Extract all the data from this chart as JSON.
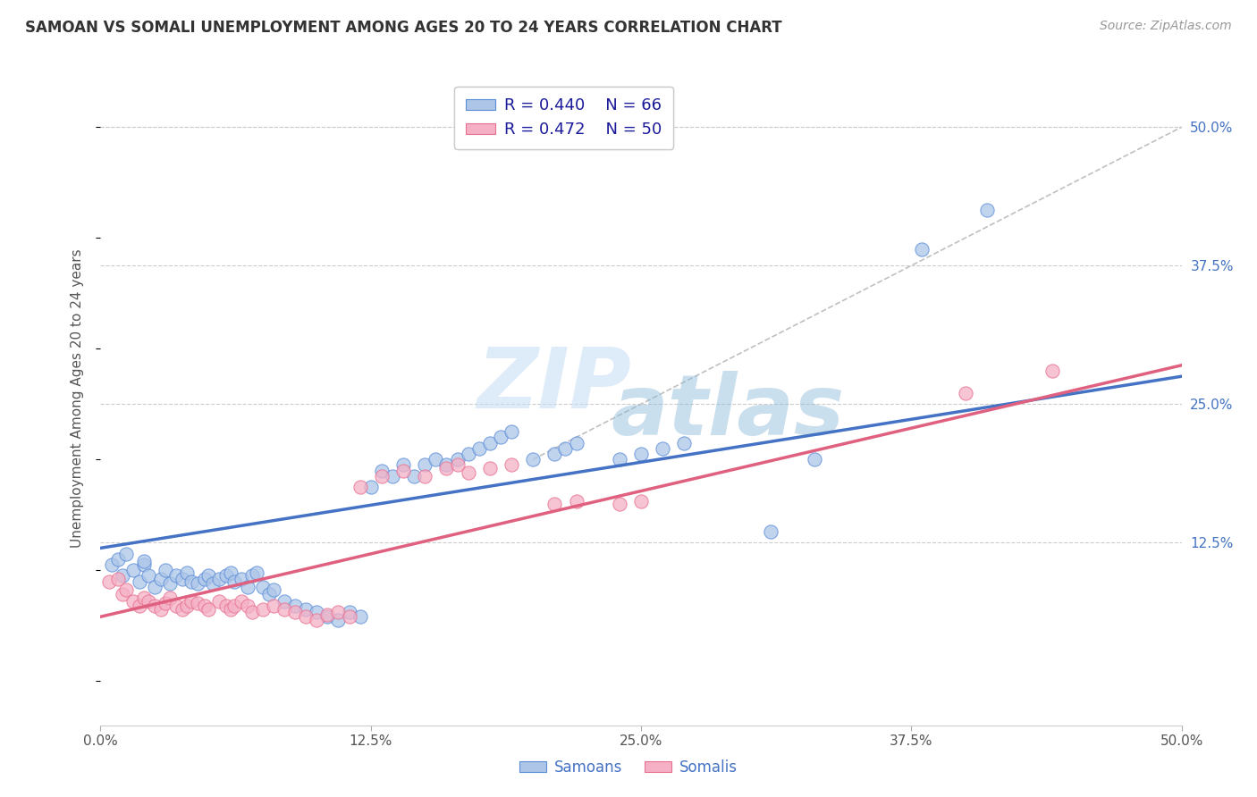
{
  "title": "SAMOAN VS SOMALI UNEMPLOYMENT AMONG AGES 20 TO 24 YEARS CORRELATION CHART",
  "source": "Source: ZipAtlas.com",
  "ylabel": "Unemployment Among Ages 20 to 24 years",
  "xlim": [
    0.0,
    0.5
  ],
  "ylim": [
    -0.04,
    0.55
  ],
  "xtick_labels": [
    "0.0%",
    "12.5%",
    "25.0%",
    "37.5%",
    "50.0%"
  ],
  "xtick_vals": [
    0.0,
    0.125,
    0.25,
    0.375,
    0.5
  ],
  "ytick_labels_right": [
    "50.0%",
    "37.5%",
    "25.0%",
    "12.5%"
  ],
  "ytick_vals_right": [
    0.5,
    0.375,
    0.25,
    0.125
  ],
  "samoan_color": "#adc6e8",
  "somali_color": "#f5b0c5",
  "samoan_edge_color": "#5b8dd9",
  "somali_edge_color": "#e87090",
  "samoan_line_color": "#4472c4",
  "somali_line_color": "#e06080",
  "diagonal_color": "#c0c0c0",
  "legend_r_samoan": "R = 0.440",
  "legend_n_samoan": "N = 66",
  "legend_r_somali": "R = 0.472",
  "legend_n_somali": "N = 50",
  "watermark_zip": "ZIP",
  "watermark_atlas": "atlas",
  "background_color": "#ffffff",
  "grid_color": "#cccccc",
  "samoan_scatter_x": [
    0.005,
    0.008,
    0.01,
    0.012,
    0.015,
    0.018,
    0.02,
    0.02,
    0.022,
    0.025,
    0.028,
    0.03,
    0.032,
    0.035,
    0.038,
    0.04,
    0.042,
    0.045,
    0.048,
    0.05,
    0.052,
    0.055,
    0.058,
    0.06,
    0.062,
    0.065,
    0.068,
    0.07,
    0.072,
    0.075,
    0.078,
    0.08,
    0.085,
    0.09,
    0.095,
    0.1,
    0.105,
    0.11,
    0.115,
    0.12,
    0.125,
    0.13,
    0.135,
    0.14,
    0.145,
    0.15,
    0.155,
    0.16,
    0.165,
    0.17,
    0.175,
    0.18,
    0.185,
    0.19,
    0.2,
    0.21,
    0.215,
    0.22,
    0.24,
    0.25,
    0.26,
    0.27,
    0.31,
    0.33,
    0.38,
    0.41
  ],
  "samoan_scatter_y": [
    0.105,
    0.11,
    0.095,
    0.115,
    0.1,
    0.09,
    0.105,
    0.108,
    0.095,
    0.085,
    0.092,
    0.1,
    0.088,
    0.095,
    0.092,
    0.098,
    0.09,
    0.088,
    0.092,
    0.095,
    0.088,
    0.092,
    0.095,
    0.098,
    0.09,
    0.092,
    0.085,
    0.095,
    0.098,
    0.085,
    0.078,
    0.082,
    0.072,
    0.068,
    0.065,
    0.062,
    0.058,
    0.055,
    0.062,
    0.058,
    0.175,
    0.19,
    0.185,
    0.195,
    0.185,
    0.195,
    0.2,
    0.195,
    0.2,
    0.205,
    0.21,
    0.215,
    0.22,
    0.225,
    0.2,
    0.205,
    0.21,
    0.215,
    0.2,
    0.205,
    0.21,
    0.215,
    0.135,
    0.2,
    0.39,
    0.425
  ],
  "somali_scatter_x": [
    0.004,
    0.008,
    0.01,
    0.012,
    0.015,
    0.018,
    0.02,
    0.022,
    0.025,
    0.028,
    0.03,
    0.032,
    0.035,
    0.038,
    0.04,
    0.042,
    0.045,
    0.048,
    0.05,
    0.055,
    0.058,
    0.06,
    0.062,
    0.065,
    0.068,
    0.07,
    0.075,
    0.08,
    0.085,
    0.09,
    0.095,
    0.1,
    0.105,
    0.11,
    0.115,
    0.12,
    0.13,
    0.14,
    0.15,
    0.16,
    0.165,
    0.17,
    0.18,
    0.19,
    0.21,
    0.22,
    0.24,
    0.25,
    0.4,
    0.44
  ],
  "somali_scatter_y": [
    0.09,
    0.092,
    0.078,
    0.082,
    0.072,
    0.068,
    0.075,
    0.072,
    0.068,
    0.065,
    0.07,
    0.075,
    0.068,
    0.065,
    0.068,
    0.072,
    0.07,
    0.068,
    0.065,
    0.072,
    0.068,
    0.065,
    0.068,
    0.072,
    0.068,
    0.062,
    0.065,
    0.068,
    0.065,
    0.062,
    0.058,
    0.055,
    0.06,
    0.062,
    0.058,
    0.175,
    0.185,
    0.19,
    0.185,
    0.192,
    0.195,
    0.188,
    0.192,
    0.195,
    0.16,
    0.162,
    0.16,
    0.162,
    0.26,
    0.28
  ],
  "samoan_line_x": [
    0.0,
    0.5
  ],
  "samoan_line_y": [
    0.12,
    0.275
  ],
  "somali_line_x": [
    0.0,
    0.5
  ],
  "somali_line_y": [
    0.058,
    0.285
  ],
  "diagonal_line_x": [
    0.2,
    0.5
  ],
  "diagonal_line_y": [
    0.2,
    0.5
  ]
}
